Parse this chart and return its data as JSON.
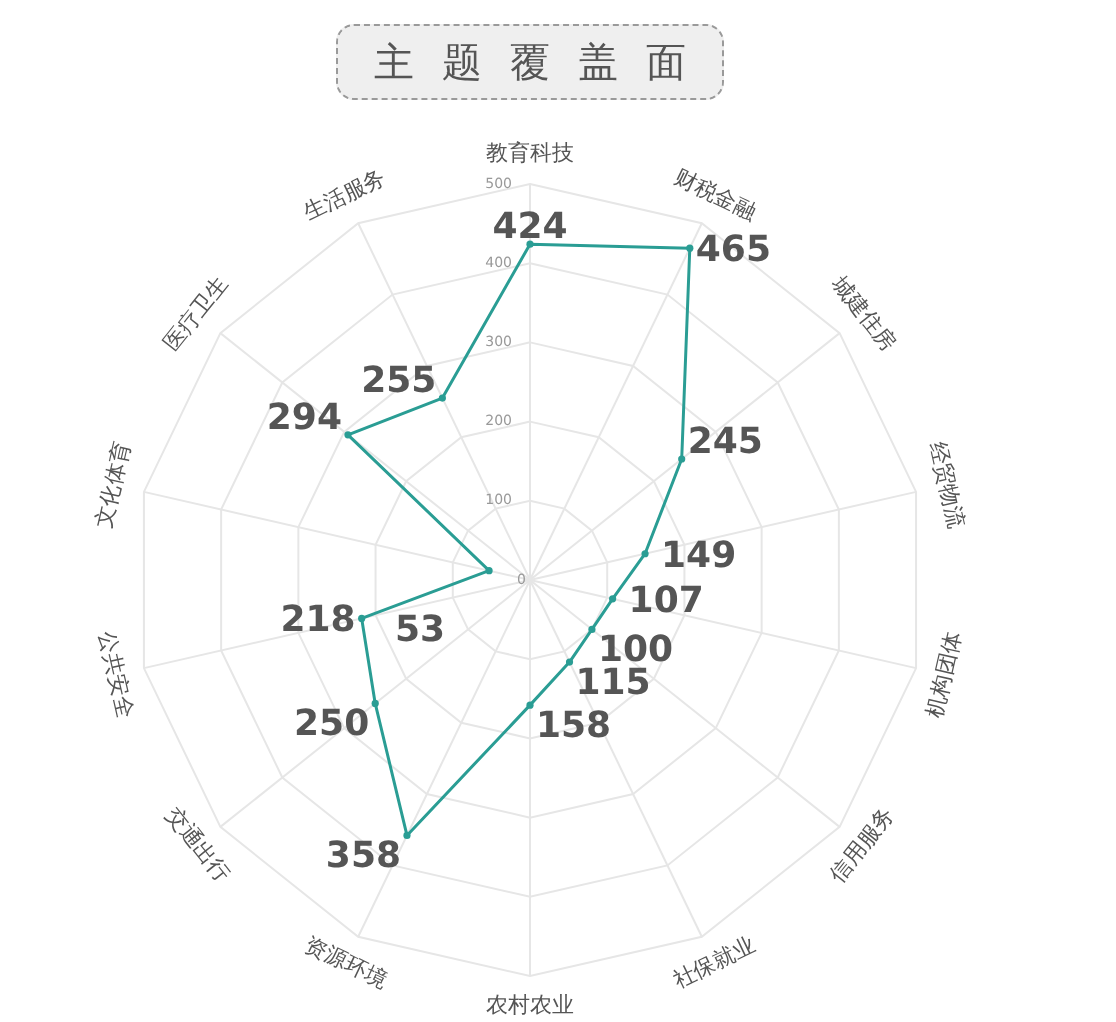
{
  "chart_data": {
    "type": "radar",
    "title": "主题覆盖面",
    "categories": [
      "教育科技",
      "财税金融",
      "城建住房",
      "经贸物流",
      "机构团体",
      "信用服务",
      "社保就业",
      "农村农业",
      "资源环境",
      "交通出行",
      "公共安全",
      "文化体育",
      "医疗卫生",
      "生活服务"
    ],
    "series": [
      {
        "color": "#2a9d94",
        "values": [
          424,
          465,
          245,
          149,
          107,
          100,
          115,
          158,
          358,
          250,
          218,
          53,
          294,
          255
        ]
      }
    ],
    "ylim": [
      0,
      500
    ],
    "yticks": [
      0,
      100,
      200,
      300,
      400,
      500
    ],
    "grid": true,
    "marker": "circle",
    "data_labels": true
  }
}
